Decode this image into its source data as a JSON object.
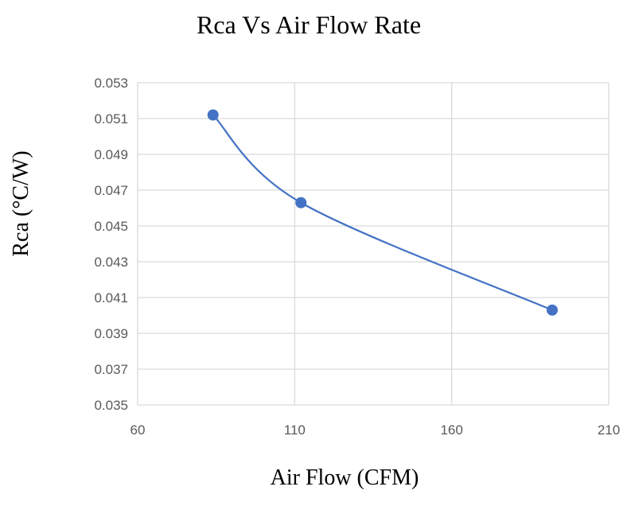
{
  "chart_data": {
    "type": "scatter",
    "title": "Rca Vs Air Flow Rate",
    "xlabel": "Air Flow (CFM)",
    "ylabel": "Rca (°C/W)",
    "xlim": [
      60,
      210
    ],
    "ylim": [
      0.035,
      0.053
    ],
    "xticks": [
      60,
      110,
      160,
      210
    ],
    "yticks": [
      0.035,
      0.037,
      0.039,
      0.041,
      0.043,
      0.045,
      0.047,
      0.049,
      0.051,
      0.053
    ],
    "xtick_labels": [
      "60",
      "110",
      "160",
      "210"
    ],
    "ytick_labels": [
      "0.035",
      "0.037",
      "0.039",
      "0.041",
      "0.043",
      "0.045",
      "0.047",
      "0.049",
      "0.051",
      "0.053"
    ],
    "grid": true,
    "line_style": "smooth",
    "series": [
      {
        "name": "Rca",
        "color": "#4472c4",
        "x": [
          84,
          112,
          192
        ],
        "y": [
          0.0512,
          0.0463,
          0.0403
        ]
      }
    ]
  }
}
